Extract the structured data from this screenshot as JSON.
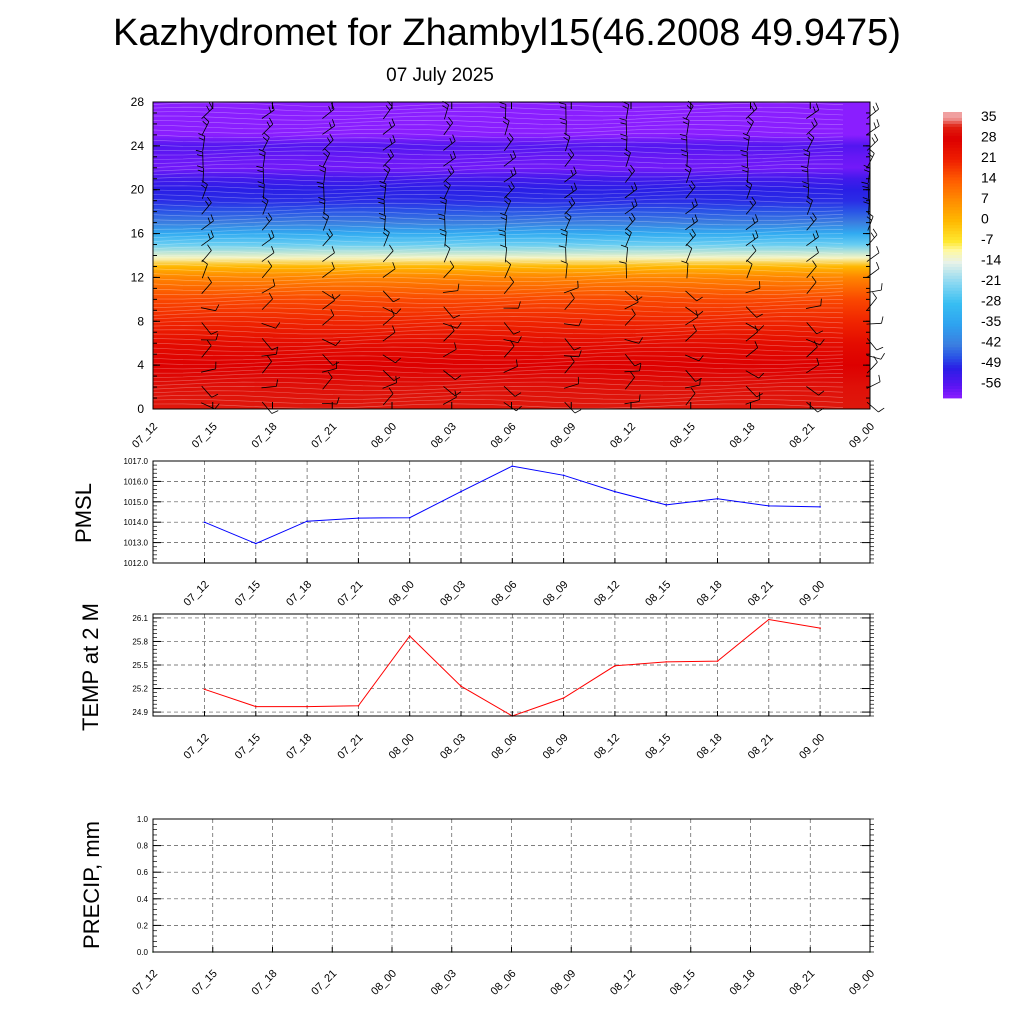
{
  "header": {
    "title": "Kazhydromet for Zhambyl15(46.2008 49.9475)",
    "subtitle": "07 July 2025"
  },
  "chart_data": [
    {
      "type": "heatmap",
      "title": "Kazhydromet for Zhambyl15(46.2008 49.9475)",
      "subtitle": "07 July 2025",
      "xlabel": "",
      "ylabel": "",
      "x": [
        "07_12",
        "07_15",
        "07_18",
        "07_21",
        "08_00",
        "08_03",
        "08_06",
        "08_09",
        "08_12",
        "08_15",
        "08_18",
        "08_21",
        "09_00"
      ],
      "yticks": [
        0,
        4,
        8,
        12,
        16,
        20,
        24,
        28
      ],
      "ylim": [
        0,
        28
      ],
      "colorbar": {
        "labels": [
          "35",
          "28",
          "21",
          "14",
          "7",
          "0",
          "-7",
          "-14",
          "-21",
          "-28",
          "-35",
          "-42",
          "-49",
          "-56"
        ],
        "range": [
          -60,
          37
        ]
      },
      "temperature_profile": {
        "heights": [
          0,
          2,
          4,
          6,
          8,
          10,
          12,
          13,
          13.8,
          15,
          16,
          17,
          18,
          19,
          20,
          21,
          22,
          23,
          24,
          25,
          26,
          27,
          28
        ],
        "values": [
          31,
          30,
          28,
          25,
          20,
          16,
          8,
          0,
          -12,
          -24,
          -33,
          -42,
          -46,
          -49,
          -50,
          -53,
          -58,
          -57,
          -55,
          -60,
          -60,
          -60,
          -60
        ]
      },
      "wind_barbs": true
    },
    {
      "type": "line",
      "ylabel": "PMSL",
      "x": [
        "07_12",
        "07_15",
        "07_18",
        "07_21",
        "08_00",
        "08_03",
        "08_06",
        "08_09",
        "08_12",
        "08_15",
        "08_18",
        "08_21",
        "09_00"
      ],
      "yticks": [
        "1012.0",
        "1013.0",
        "1014.0",
        "1015.0",
        "1016.0",
        "1017.0"
      ],
      "ylim": [
        1012,
        1017
      ],
      "grid": true,
      "series": [
        {
          "color": "#0000ff",
          "values": [
            1014.0,
            1012.95,
            1014.05,
            1014.2,
            1014.22,
            1015.5,
            1016.75,
            1016.3,
            1015.5,
            1014.85,
            1015.15,
            1014.8,
            1014.75
          ]
        }
      ]
    },
    {
      "type": "line",
      "ylabel": "TEMP at 2 M",
      "x": [
        "07_12",
        "07_15",
        "07_18",
        "07_21",
        "08_00",
        "08_03",
        "08_06",
        "08_09",
        "08_12",
        "08_15",
        "08_18",
        "08_21",
        "09_00"
      ],
      "yticks": [
        "24.9",
        "25.2",
        "25.5",
        "25.8",
        "26.1"
      ],
      "ylim": [
        24.85,
        26.15
      ],
      "grid": true,
      "series": [
        {
          "color": "#ff0000",
          "values": [
            25.19,
            24.97,
            24.97,
            24.98,
            25.87,
            25.23,
            24.85,
            25.08,
            25.49,
            25.54,
            25.55,
            26.08,
            25.97
          ]
        }
      ]
    },
    {
      "type": "line",
      "ylabel": "PRECIP, mm",
      "x": [
        "07_12",
        "07_15",
        "07_18",
        "07_21",
        "08_00",
        "08_03",
        "08_06",
        "08_09",
        "08_12",
        "08_15",
        "08_18",
        "08_21",
        "09_00"
      ],
      "yticks": [
        "0.0",
        "0.2",
        "0.4",
        "0.6",
        "0.8",
        "1.0"
      ],
      "ylim": [
        0,
        1.0
      ],
      "grid": true,
      "series": [
        {
          "color": "#006400",
          "values": [
            0,
            0,
            0,
            0,
            0,
            0,
            0,
            0,
            0,
            0,
            0,
            0,
            0
          ]
        }
      ]
    }
  ],
  "colors": {
    "pmsl_line": "#0000ff",
    "temp_line": "#ff0000",
    "precip_line": "#006400"
  }
}
